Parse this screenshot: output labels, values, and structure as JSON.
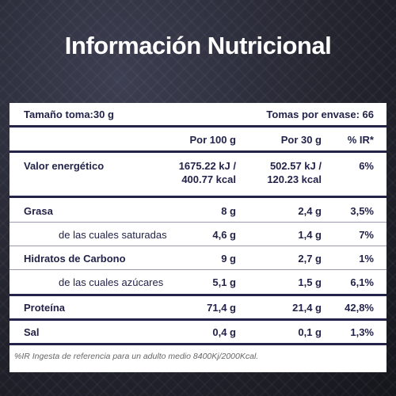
{
  "header": {
    "title": "Información Nutricional"
  },
  "table": {
    "serving_size": "Tamaño toma:30 g",
    "servings": "Tomas por envase: 66",
    "columns": [
      "Por 100 g",
      "Por 30 g",
      "% IR*"
    ],
    "rows": [
      [
        "Valor energético",
        [
          "1675.22 kJ /",
          "400.77 kcal"
        ],
        [
          "502.57 kJ /",
          "120.23 kcal"
        ],
        "6%"
      ],
      [
        "Grasa",
        "8 g",
        "2,4 g",
        "3,5%"
      ],
      [
        "de las cuales saturadas",
        "4,6 g",
        "1,4 g",
        "7%"
      ],
      [
        "Hidratos de Carbono",
        "9 g",
        "2,7 g",
        "1%"
      ],
      [
        "de las cuales azúcares",
        "5,1 g",
        "1,5 g",
        "6,1%"
      ],
      [
        "Proteína",
        "71,4 g",
        "21,4 g",
        "42,8%"
      ],
      [
        "Sal",
        "0,4 g",
        "0,1 g",
        "1,3%"
      ]
    ],
    "footnote": "%IR Ingesta de referencia para un adulto medio 8400Kj/2000Kcal."
  }
}
